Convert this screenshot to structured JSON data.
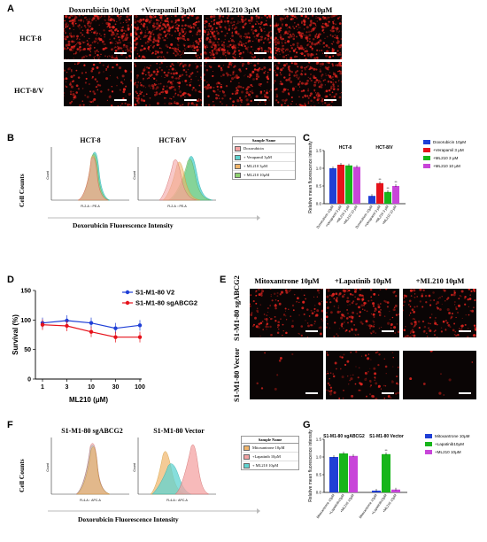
{
  "panels": {
    "A": "A",
    "B": "B",
    "C": "C",
    "D": "D",
    "E": "E",
    "F": "F",
    "G": "G"
  },
  "panelA": {
    "columns": [
      "Doxorubicin 10μM",
      "+Verapamil 3μM",
      "+ML210 3μM",
      "+ML210 10μM"
    ],
    "rows": [
      "HCT-8",
      "HCT-8/V"
    ],
    "intensity": [
      [
        0.85,
        0.85,
        0.85,
        0.85
      ],
      [
        0.3,
        0.55,
        0.45,
        0.6
      ]
    ]
  },
  "panelB": {
    "titles": [
      "HCT-8",
      "HCT-8/V"
    ],
    "ylabel": "Cell Counts",
    "xlabel": "Doxorubicin Fluorescence Intensity",
    "axis_x": "FL2-A :: PE-A",
    "axis_y": "Count",
    "legend_header": "Sample Name",
    "legend": [
      {
        "label": "Doxorubicin",
        "color": "#f4a3a3"
      },
      {
        "label": "+ Verapamil 3μM",
        "color": "#5fd3d0"
      },
      {
        "label": "+ ML210 3μM",
        "color": "#f1b56a"
      },
      {
        "label": "+ ML210 10μM",
        "color": "#8fd16f"
      }
    ]
  },
  "panelC": {
    "ylabel": "Relative mean fluorescence intensity",
    "groups": [
      "HCT-8",
      "HCT-8/V"
    ],
    "legend": [
      {
        "label": "Doxorubicin 10μM",
        "color": "#1f3fd6"
      },
      {
        "label": "+Verapamil 3 μM",
        "color": "#e6121b"
      },
      {
        "label": "+ML210 3 μM",
        "color": "#17b51a"
      },
      {
        "label": "+ML210 10 μM",
        "color": "#c845d9"
      }
    ],
    "tick_labels": [
      "Doxorubicin 10μM",
      "+Verapamil 3 μM",
      "+ML210 3 μM",
      "+ML210 10 μM",
      "Doxorubicin 10μM",
      "+Verapamil 3 μM",
      "+ML210 3 μM",
      "+ML210 10 μM"
    ],
    "yticks": [
      "1.5",
      "1.0",
      "0.5",
      "0.0"
    ],
    "sig": [
      "**",
      "**",
      "**"
    ]
  },
  "panelD": {
    "ylabel": "Survival (%)",
    "xlabel": "ML210 (μM)",
    "xticks": [
      "1",
      "3",
      "10",
      "30",
      "100"
    ],
    "yticks": [
      "150",
      "100",
      "50",
      "0"
    ],
    "legend": [
      {
        "label": "S1-M1-80 V2",
        "color": "#1f3fd6"
      },
      {
        "label": "S1-M1-80 sgABCG2",
        "color": "#e6121b"
      }
    ]
  },
  "panelE": {
    "columns": [
      "Mitoxantrone 10μM",
      "+Lapatinib 10μM",
      "+ML210 10μM"
    ],
    "rows": [
      "S1-M1-80 sgABCG2",
      "S1-M1-80 Vector"
    ],
    "intensity": [
      [
        0.35,
        0.45,
        0.4
      ],
      [
        0.02,
        0.25,
        0.02
      ]
    ]
  },
  "panelF": {
    "titles": [
      "S1-M1-80 sgABCG2",
      "S1-M1-80 Vector"
    ],
    "ylabel": "Cell Counts",
    "xlabel": "Doxorubicin Fluorescence Intensity",
    "axis_x": "FL4-A :: APC-A",
    "axis_y": "Count",
    "legend_header": "Sample Name",
    "legend": [
      {
        "label": "Mitoxantrone 10μM",
        "color": "#f1b56a"
      },
      {
        "label": "+Lapatinib 10μM",
        "color": "#f4a3a3"
      },
      {
        "label": "+ ML210 10μM",
        "color": "#5fd3d0"
      }
    ]
  },
  "panelG": {
    "ylabel": "Relative mean fluorescence intensity",
    "groups": [
      "S1-M1-80 sgABCG2",
      "S1-M1-80 Vector"
    ],
    "legend": [
      {
        "label": "Mitoxantrone 10μM",
        "color": "#1f3fd6"
      },
      {
        "label": "+Lapatinib10μM",
        "color": "#17b51a"
      },
      {
        "label": "+ML210 10μM",
        "color": "#c845d9"
      }
    ],
    "tick_labels": [
      "Mitoxantrone 10μM",
      "+Lapatinib10μM",
      "+ML210 10μM",
      "Mitoxantrone 10μM",
      "+Lapatinib10μM",
      "+ML210 10μM"
    ],
    "yticks": [
      "1.5",
      "1.0",
      "0.5",
      "0.0"
    ],
    "sig": [
      "**"
    ]
  },
  "chart_data": [
    {
      "type": "bar",
      "panel": "C",
      "categories": [
        "HCT-8",
        "HCT-8/V"
      ],
      "series": [
        {
          "name": "Doxorubicin 10μM",
          "values": [
            1.0,
            0.22
          ]
        },
        {
          "name": "+Verapamil 3 μM",
          "values": [
            1.1,
            0.58
          ]
        },
        {
          "name": "+ML210 3 μM",
          "values": [
            1.08,
            0.33
          ]
        },
        {
          "name": "+ML210 10 μM",
          "values": [
            1.04,
            0.5
          ]
        }
      ],
      "ylabel": "Relative mean fluorescence intensity",
      "ylim": [
        0,
        1.5
      ]
    },
    {
      "type": "line",
      "panel": "D",
      "x": [
        1,
        3,
        10,
        30,
        100
      ],
      "series": [
        {
          "name": "S1-M1-80 V2",
          "values": [
            95,
            99,
            95,
            86,
            91
          ]
        },
        {
          "name": "S1-M1-80 sgABCG2",
          "values": [
            92,
            90,
            80,
            71,
            71
          ]
        }
      ],
      "xlabel": "ML210 (μM)",
      "ylabel": "Survival (%)",
      "ylim": [
        0,
        150
      ]
    },
    {
      "type": "bar",
      "panel": "G",
      "categories": [
        "S1-M1-80 sgABCG2",
        "S1-M1-80 Vector"
      ],
      "series": [
        {
          "name": "Mitoxantrone 10μM",
          "values": [
            1.0,
            0.05
          ]
        },
        {
          "name": "+Lapatinib10μM",
          "values": [
            1.1,
            1.08
          ]
        },
        {
          "name": "+ML210 10μM",
          "values": [
            1.03,
            0.08
          ]
        }
      ],
      "ylabel": "Relative mean fluorescence intensity",
      "ylim": [
        0,
        1.5
      ]
    }
  ]
}
